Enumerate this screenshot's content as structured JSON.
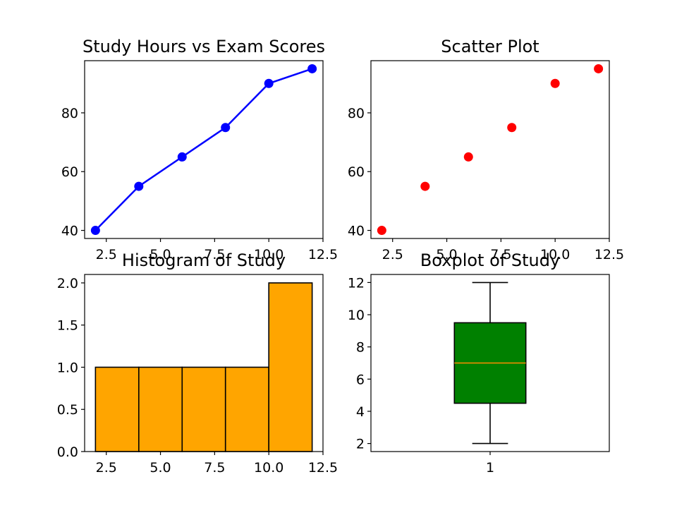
{
  "chart_data": [
    {
      "type": "line",
      "title": "Study Hours vs Exam Scores",
      "x": [
        2,
        4,
        6,
        8,
        10,
        12
      ],
      "y": [
        40,
        55,
        65,
        75,
        90,
        95
      ],
      "color": "#0000ff",
      "marker": "circle",
      "xlim": [
        1.5,
        12.5
      ],
      "ylim": [
        37.25,
        97.75
      ],
      "xticks": [
        2.5,
        5.0,
        7.5,
        10.0,
        12.5
      ],
      "xtick_labels": [
        "2.5",
        "5.0",
        "7.5",
        "10.0",
        "12.5"
      ],
      "yticks": [
        40,
        60,
        80
      ],
      "ytick_labels": [
        "40",
        "60",
        "80"
      ],
      "grid": false
    },
    {
      "type": "scatter",
      "title": "Scatter Plot",
      "x": [
        2,
        4,
        6,
        8,
        10,
        12
      ],
      "y": [
        40,
        55,
        65,
        75,
        90,
        95
      ],
      "color": "#ff0000",
      "xlim": [
        1.5,
        12.5
      ],
      "ylim": [
        37.25,
        97.75
      ],
      "xticks": [
        2.5,
        5.0,
        7.5,
        10.0,
        12.5
      ],
      "xtick_labels": [
        "2.5",
        "5.0",
        "7.5",
        "10.0",
        "12.5"
      ],
      "yticks": [
        40,
        60,
        80
      ],
      "ytick_labels": [
        "40",
        "60",
        "80"
      ],
      "grid": false
    },
    {
      "type": "bar",
      "subtype": "histogram",
      "title": "Histogram of Study",
      "bins": [
        2,
        4,
        6,
        8,
        10,
        12
      ],
      "counts": [
        1,
        1,
        1,
        1,
        2
      ],
      "color": "#ffa500",
      "edge_color": "#000000",
      "xlim": [
        1.5,
        12.5
      ],
      "ylim": [
        0,
        2.1
      ],
      "xticks": [
        2.5,
        5.0,
        7.5,
        10.0,
        12.5
      ],
      "xtick_labels": [
        "2.5",
        "5.0",
        "7.5",
        "10.0",
        "12.5"
      ],
      "yticks": [
        0.0,
        0.5,
        1.0,
        1.5,
        2.0
      ],
      "ytick_labels": [
        "0.0",
        "0.5",
        "1.0",
        "1.5",
        "2.0"
      ],
      "grid": false
    },
    {
      "type": "box",
      "title": "Boxplot of Study",
      "categories": [
        "1"
      ],
      "min": 2,
      "q1": 4.5,
      "median": 7,
      "q3": 9.5,
      "max": 12,
      "box_color": "#008000",
      "median_color": "#ff8c00",
      "xlim": [
        0.5,
        1.5
      ],
      "ylim": [
        1.5,
        12.5
      ],
      "yticks": [
        2,
        4,
        6,
        8,
        10,
        12
      ],
      "ytick_labels": [
        "2",
        "4",
        "6",
        "8",
        "10",
        "12"
      ],
      "grid": false
    }
  ]
}
